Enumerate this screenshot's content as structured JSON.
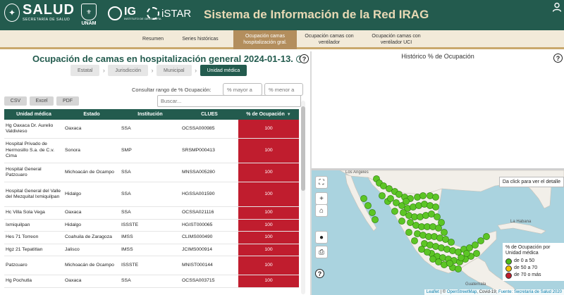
{
  "header": {
    "salud_logo": "SALUD",
    "salud_sub": "SECRETARÍA DE SALUD",
    "unam_label": "UNAM",
    "ig_logo": "IG",
    "ig_sub": "INSTITUTO DE GEOGRAFÍA",
    "istar_logo": "iSTAR",
    "title": "Sistema de Información de la Red IRAG",
    "colors": {
      "primary": "#235b4e",
      "accent": "#b38e5d",
      "title": "#e8d9b5"
    }
  },
  "nav": {
    "tabs": [
      {
        "label": "Resumen",
        "active": false
      },
      {
        "label": "Series históricas",
        "active": false
      },
      {
        "label": "Ocupación camas hospitalización gral.",
        "active": true
      },
      {
        "label": "Ocupación camas con ventilador",
        "active": false
      },
      {
        "label": "Ocupación camas con ventilador UCI",
        "active": false
      }
    ]
  },
  "left": {
    "title": "Ocupación de camas en hospitalización general 2024-01-13.",
    "breadcrumbs": [
      {
        "label": "Estatal",
        "active": false
      },
      {
        "label": "Jurisdicción",
        "active": false
      },
      {
        "label": "Municipal",
        "active": false
      },
      {
        "label": "Unidad médica",
        "active": true
      }
    ],
    "range_label": "Consultar rango de % Ocupación:",
    "range_min_placeholder": "% mayor a",
    "range_max_placeholder": "% menor a",
    "search_placeholder": "Buscar...",
    "export": [
      "CSV",
      "Excel",
      "PDF"
    ],
    "columns": [
      "Unidad médica",
      "Estado",
      "Institución",
      "CLUES",
      "% de Ocupación"
    ],
    "rows": [
      {
        "unidad": "Hg Oaxaca Dr. Aurelio Valdivieso",
        "estado": "Oaxaca",
        "institucion": "SSA",
        "clues": "OCSSA000985",
        "pct": "100"
      },
      {
        "unidad": "Hospital Privado de Hermosillo S.a. de C.v. Cima",
        "estado": "Sonora",
        "institucion": "SMP",
        "clues": "SRSMP000413",
        "pct": "100"
      },
      {
        "unidad": "Hospital General Patzcuaro",
        "estado": "Michoacán de Ocampo",
        "institucion": "SSA",
        "clues": "MNSSA005280",
        "pct": "100"
      },
      {
        "unidad": "Hospital General del Valle del Mezquital Ixmiquilpan",
        "estado": "Hidalgo",
        "institucion": "SSA",
        "clues": "HGSSA001590",
        "pct": "100"
      },
      {
        "unidad": "Hc Villa Sola Vega",
        "estado": "Oaxaca",
        "institucion": "SSA",
        "clues": "OCSSA021116",
        "pct": "100"
      },
      {
        "unidad": "Ixmiquilpan",
        "estado": "Hidalgo",
        "institucion": "ISSSTE",
        "clues": "HGIST000065",
        "pct": "100"
      },
      {
        "unidad": "Hes 71 Torreon",
        "estado": "Coahuila de Zaragoza",
        "institucion": "IMSS",
        "clues": "CLIMS000490",
        "pct": "100"
      },
      {
        "unidad": "Hgz 21 Tepatitlan",
        "estado": "Jalisco",
        "institucion": "IMSS",
        "clues": "JCIMS000914",
        "pct": "100"
      },
      {
        "unidad": "Patzcuaro",
        "estado": "Michoacán de Ocampo",
        "institucion": "ISSSTE",
        "clues": "MNIST000144",
        "pct": "100"
      },
      {
        "unidad": "Hg Pochutla",
        "estado": "Oaxaca",
        "institucion": "SSA",
        "clues": "OCSSA003715",
        "pct": "100"
      }
    ]
  },
  "right": {
    "title": "Histórico % de Ocupación",
    "map_hint": "Da click para ver el detalle",
    "legend": {
      "title": "% de Ocupación por Unidad médica",
      "items": [
        {
          "label": "de 0 a 50",
          "color": "#4cbb17"
        },
        {
          "label": "de 50 a 70",
          "color": "#f2c200"
        },
        {
          "label": "de 70 o más",
          "color": "#c01d2e"
        }
      ]
    },
    "map_labels": {
      "los_angeles": "Los Angeles",
      "la_habana": "La Habana",
      "guatemala": "Guatemala"
    },
    "attribution": {
      "leaflet": "Leaflet",
      "osm": "OpenStreetMap",
      "source": "Covid-19;",
      "fuente": "Fuente: Secretaría de Salud 2020"
    }
  }
}
